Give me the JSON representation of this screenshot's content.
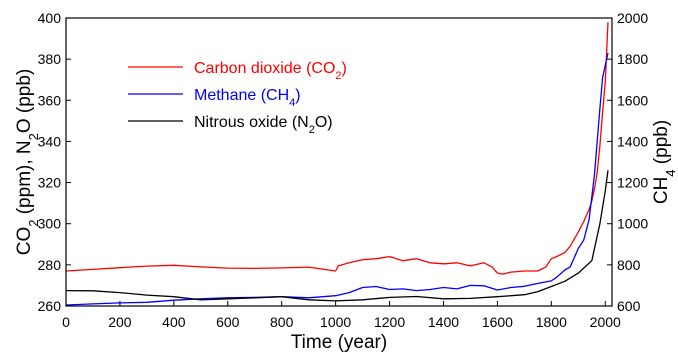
{
  "chart_data": {
    "type": "line",
    "xlabel": "Time (year)",
    "ylabel_left": {
      "text": "CO",
      "sub1": "2",
      "mid": " (ppm), N",
      "sub2": "2",
      "end": "O (ppb)"
    },
    "ylabel_right": {
      "text": "CH",
      "sub": "4",
      "end": " (ppb)"
    },
    "xlim": [
      0,
      2025
    ],
    "ylim_left": [
      260,
      400
    ],
    "ylim_right": [
      600,
      2000
    ],
    "xticks": [
      "0",
      "200",
      "400",
      "600",
      "800",
      "1000",
      "1200",
      "1400",
      "1600",
      "1800",
      "2000"
    ],
    "yticks_left": [
      "260",
      "280",
      "300",
      "320",
      "340",
      "360",
      "380",
      "400"
    ],
    "yticks_right": [
      "600",
      "800",
      "1000",
      "1200",
      "1400",
      "1600",
      "1800",
      "2000"
    ],
    "grid": false,
    "legend_position": "top-left",
    "series": [
      {
        "name": "Carbon dioxide (CO2)",
        "label": {
          "text": "Carbon dioxide (CO",
          "sub": "2",
          "end": ")"
        },
        "color": "#ff0000",
        "axis": "left",
        "x": [
          0,
          100,
          200,
          300,
          400,
          500,
          600,
          700,
          800,
          900,
          1000,
          1010,
          1050,
          1100,
          1150,
          1200,
          1250,
          1300,
          1350,
          1400,
          1450,
          1500,
          1550,
          1580,
          1600,
          1620,
          1650,
          1700,
          1750,
          1780,
          1800,
          1820,
          1850,
          1870,
          1900,
          1920,
          1940,
          1950,
          1960,
          1970,
          1980,
          1990,
          2000,
          2010
        ],
        "values": [
          277,
          277.8,
          278.6,
          279.4,
          279.8,
          279,
          278.4,
          278.3,
          278.5,
          278.9,
          277,
          279.5,
          281,
          282.5,
          283,
          284,
          282,
          283,
          281,
          280.5,
          281,
          279.5,
          281,
          279,
          276,
          275.5,
          276.5,
          277,
          277,
          279,
          283,
          284,
          286,
          289,
          296,
          301,
          307,
          311,
          317,
          325,
          338,
          354,
          369,
          398
        ]
      },
      {
        "name": "Methane (CH4)",
        "label": {
          "text": "Methane (CH",
          "sub": "4",
          "end": ")"
        },
        "color": "#0000ff",
        "axis": "right",
        "x": [
          0,
          100,
          200,
          300,
          400,
          500,
          600,
          700,
          800,
          900,
          1000,
          1050,
          1100,
          1150,
          1200,
          1250,
          1300,
          1350,
          1400,
          1450,
          1500,
          1550,
          1600,
          1650,
          1700,
          1750,
          1800,
          1820,
          1850,
          1870,
          1900,
          1920,
          1940,
          1960,
          1970,
          1980,
          1990,
          2000,
          2010
        ],
        "values": [
          605,
          610,
          615,
          618,
          628,
          635,
          640,
          642,
          645,
          640,
          650,
          665,
          690,
          695,
          680,
          683,
          675,
          680,
          690,
          683,
          700,
          698,
          678,
          690,
          696,
          710,
          722,
          740,
          775,
          790,
          880,
          920,
          1020,
          1240,
          1400,
          1560,
          1710,
          1770,
          1830
        ]
      },
      {
        "name": "Nitrous oxide (N2O)",
        "label": {
          "text": "Nitrous oxide (N",
          "sub": "2",
          "end": "O)"
        },
        "color": "#000000",
        "axis": "left",
        "x": [
          0,
          100,
          200,
          300,
          400,
          500,
          600,
          700,
          800,
          900,
          1000,
          1100,
          1200,
          1300,
          1400,
          1500,
          1600,
          1700,
          1750,
          1800,
          1850,
          1900,
          1950,
          1960,
          1980,
          2000,
          2010
        ],
        "values": [
          267.5,
          267.4,
          266.5,
          265.3,
          264.5,
          263,
          263.5,
          264,
          264.5,
          263,
          262.5,
          263,
          264.2,
          264.6,
          263.5,
          263.7,
          264.5,
          265.5,
          267,
          269.5,
          272,
          276,
          282,
          288,
          300,
          316,
          326
        ]
      }
    ]
  }
}
